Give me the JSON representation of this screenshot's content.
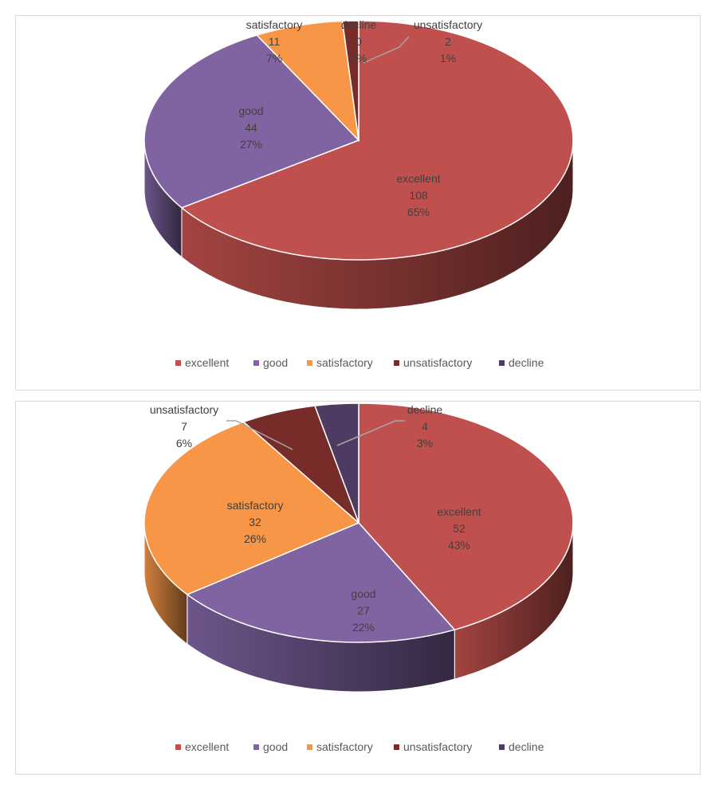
{
  "chart_data": [
    {
      "type": "pie",
      "three_d": true,
      "title": "",
      "legend_position": "bottom",
      "legend": [
        "excellent",
        "good",
        "satisfactory",
        "unsatisfactory",
        "decline"
      ],
      "slices": [
        {
          "label": "excellent",
          "value": 108,
          "percent": "65%",
          "color": "#c0504d"
        },
        {
          "label": "good",
          "value": 44,
          "percent": "27%",
          "color": "#8064a2"
        },
        {
          "label": "satisfactory",
          "value": 11,
          "percent": "7%",
          "color": "#f79646"
        },
        {
          "label": "unsatisfactory",
          "value": 2,
          "percent": "1%",
          "color": "#772c2a"
        },
        {
          "label": "decline",
          "value": 0,
          "percent": "0%",
          "color": "#4d3b62"
        }
      ]
    },
    {
      "type": "pie",
      "three_d": true,
      "title": "",
      "legend_position": "bottom",
      "legend": [
        "excellent",
        "good",
        "satisfactory",
        "unsatisfactory",
        "decline"
      ],
      "slices": [
        {
          "label": "excellent",
          "value": 52,
          "percent": "43%",
          "color": "#c0504d"
        },
        {
          "label": "good",
          "value": 27,
          "percent": "22%",
          "color": "#8064a2"
        },
        {
          "label": "satisfactory",
          "value": 32,
          "percent": "26%",
          "color": "#f79646"
        },
        {
          "label": "unsatisfactory",
          "value": 7,
          "percent": "6%",
          "color": "#772c2a"
        },
        {
          "label": "decline",
          "value": 4,
          "percent": "3%",
          "color": "#4d3b62"
        }
      ]
    }
  ]
}
